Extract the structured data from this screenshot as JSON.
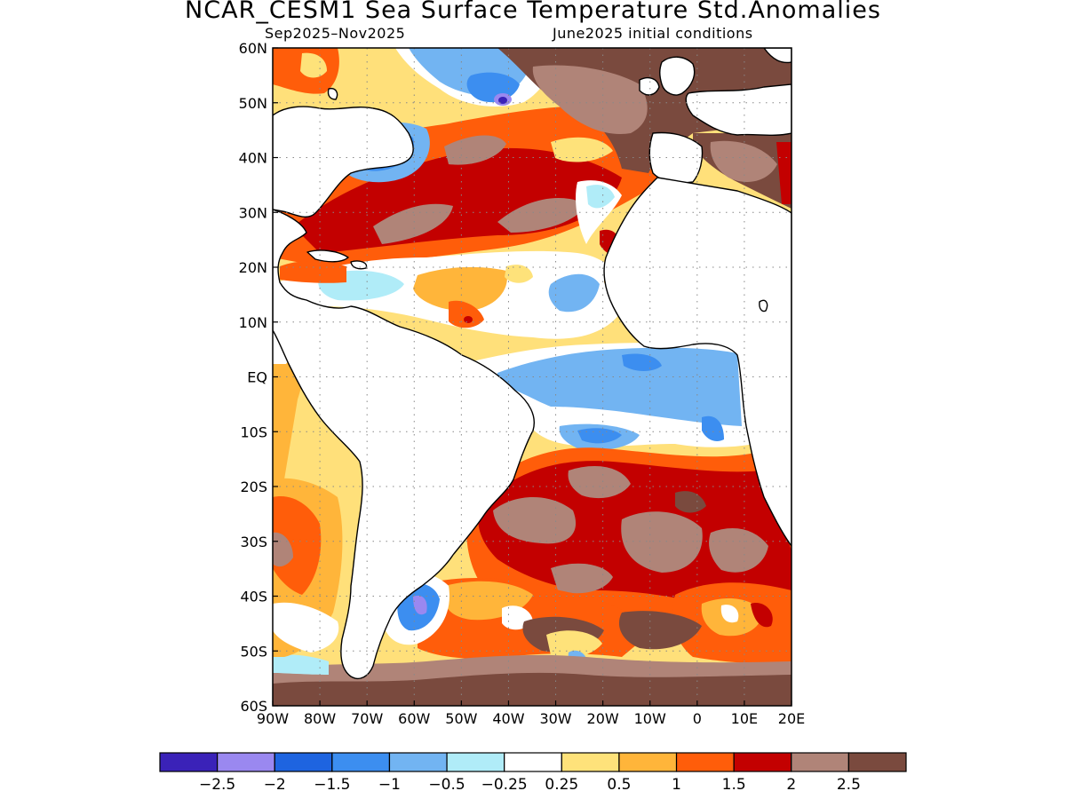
{
  "title": "NCAR_CESM1 Sea Surface Temperature Std.Anomalies",
  "subtitle_left": "Sep2025–Nov2025",
  "subtitle_right": "June2025 initial conditions",
  "map": {
    "lon_range": [
      -90,
      20
    ],
    "lat_range": [
      -60,
      60
    ],
    "lat_ticks": [
      {
        "lat": 60,
        "label": "60N"
      },
      {
        "lat": 50,
        "label": "50N"
      },
      {
        "lat": 40,
        "label": "40N"
      },
      {
        "lat": 30,
        "label": "30N"
      },
      {
        "lat": 20,
        "label": "20N"
      },
      {
        "lat": 10,
        "label": "10N"
      },
      {
        "lat": 0,
        "label": "EQ"
      },
      {
        "lat": -10,
        "label": "10S"
      },
      {
        "lat": -20,
        "label": "20S"
      },
      {
        "lat": -30,
        "label": "30S"
      },
      {
        "lat": -40,
        "label": "40S"
      },
      {
        "lat": -50,
        "label": "50S"
      },
      {
        "lat": -60,
        "label": "60S"
      }
    ],
    "lon_ticks": [
      {
        "lon": -90,
        "label": "90W"
      },
      {
        "lon": -80,
        "label": "80W"
      },
      {
        "lon": -70,
        "label": "70W"
      },
      {
        "lon": -60,
        "label": "60W"
      },
      {
        "lon": -50,
        "label": "50W"
      },
      {
        "lon": -40,
        "label": "40W"
      },
      {
        "lon": -30,
        "label": "30W"
      },
      {
        "lon": -20,
        "label": "20W"
      },
      {
        "lon": -10,
        "label": "10W"
      },
      {
        "lon": 0,
        "label": "0"
      },
      {
        "lon": 10,
        "label": "10E"
      },
      {
        "lon": 20,
        "label": "20E"
      }
    ],
    "grid": "dotted"
  },
  "colorbar": {
    "colors": [
      "#3a22b8",
      "#9a88f0",
      "#1e64e0",
      "#3c8ef0",
      "#72b4f2",
      "#b0ecf8",
      "#ffffff",
      "#fee27a",
      "#ffb53a",
      "#ff5d0a",
      "#c30000",
      "#b08478",
      "#7a4a3e"
    ],
    "labels": [
      "−2.5",
      "−2",
      "−1.5",
      "−1",
      "−0.5",
      "−0.25",
      "0.25",
      "0.5",
      "1",
      "1.5",
      "2",
      "2.5"
    ]
  }
}
